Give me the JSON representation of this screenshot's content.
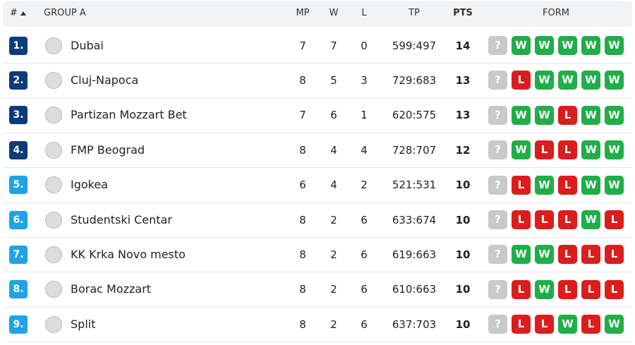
{
  "header": {
    "rank": "#",
    "group": "GROUP A",
    "mp": "MP",
    "w": "W",
    "l": "L",
    "tp": "TP",
    "pts": "PTS",
    "form": "FORM"
  },
  "rows": [
    {
      "rank": "1.",
      "badge_color": "#0c3c78",
      "team": "Dubai",
      "mp": 7,
      "w": 7,
      "l": 0,
      "tp": "599:497",
      "pts": 14,
      "form": [
        {
          "result": "?",
          "color": "#c9c9c9"
        },
        {
          "result": "W",
          "color": "#20ae48"
        },
        {
          "result": "W",
          "color": "#20ae48"
        },
        {
          "result": "W",
          "color": "#20ae48"
        },
        {
          "result": "W",
          "color": "#20ae48"
        },
        {
          "result": "W",
          "color": "#20ae48"
        }
      ]
    },
    {
      "rank": "2.",
      "badge_color": "#0c3c78",
      "team": "Cluj-Napoca",
      "mp": 8,
      "w": 5,
      "l": 3,
      "tp": "729:683",
      "pts": 13,
      "form": [
        {
          "result": "?",
          "color": "#c9c9c9"
        },
        {
          "result": "L",
          "color": "#dc1d1d"
        },
        {
          "result": "W",
          "color": "#20ae48"
        },
        {
          "result": "W",
          "color": "#20ae48"
        },
        {
          "result": "W",
          "color": "#20ae48"
        },
        {
          "result": "W",
          "color": "#20ae48"
        }
      ]
    },
    {
      "rank": "3.",
      "badge_color": "#0c3c78",
      "team": "Partizan Mozzart Bet",
      "mp": 7,
      "w": 6,
      "l": 1,
      "tp": "620:575",
      "pts": 13,
      "form": [
        {
          "result": "?",
          "color": "#c9c9c9"
        },
        {
          "result": "W",
          "color": "#20ae48"
        },
        {
          "result": "W",
          "color": "#20ae48"
        },
        {
          "result": "L",
          "color": "#dc1d1d"
        },
        {
          "result": "W",
          "color": "#20ae48"
        },
        {
          "result": "W",
          "color": "#20ae48"
        }
      ]
    },
    {
      "rank": "4.",
      "badge_color": "#0c3c78",
      "team": "FMP Beograd",
      "mp": 8,
      "w": 4,
      "l": 4,
      "tp": "728:707",
      "pts": 12,
      "form": [
        {
          "result": "?",
          "color": "#c9c9c9"
        },
        {
          "result": "W",
          "color": "#20ae48"
        },
        {
          "result": "L",
          "color": "#dc1d1d"
        },
        {
          "result": "L",
          "color": "#dc1d1d"
        },
        {
          "result": "W",
          "color": "#20ae48"
        },
        {
          "result": "W",
          "color": "#20ae48"
        }
      ]
    },
    {
      "rank": "5.",
      "badge_color": "#1fa3e6",
      "team": "Igokea",
      "mp": 6,
      "w": 4,
      "l": 2,
      "tp": "521:531",
      "pts": 10,
      "form": [
        {
          "result": "?",
          "color": "#c9c9c9"
        },
        {
          "result": "L",
          "color": "#dc1d1d"
        },
        {
          "result": "W",
          "color": "#20ae48"
        },
        {
          "result": "L",
          "color": "#dc1d1d"
        },
        {
          "result": "W",
          "color": "#20ae48"
        },
        {
          "result": "W",
          "color": "#20ae48"
        }
      ]
    },
    {
      "rank": "6.",
      "badge_color": "#1fa3e6",
      "team": "Studentski Centar",
      "mp": 8,
      "w": 2,
      "l": 6,
      "tp": "633:674",
      "pts": 10,
      "form": [
        {
          "result": "?",
          "color": "#c9c9c9"
        },
        {
          "result": "L",
          "color": "#dc1d1d"
        },
        {
          "result": "L",
          "color": "#dc1d1d"
        },
        {
          "result": "L",
          "color": "#dc1d1d"
        },
        {
          "result": "W",
          "color": "#20ae48"
        },
        {
          "result": "L",
          "color": "#dc1d1d"
        }
      ]
    },
    {
      "rank": "7.",
      "badge_color": "#1fa3e6",
      "team": "KK Krka Novo mesto",
      "mp": 8,
      "w": 2,
      "l": 6,
      "tp": "619:663",
      "pts": 10,
      "form": [
        {
          "result": "?",
          "color": "#c9c9c9"
        },
        {
          "result": "W",
          "color": "#20ae48"
        },
        {
          "result": "W",
          "color": "#20ae48"
        },
        {
          "result": "L",
          "color": "#dc1d1d"
        },
        {
          "result": "L",
          "color": "#dc1d1d"
        },
        {
          "result": "L",
          "color": "#dc1d1d"
        }
      ]
    },
    {
      "rank": "8.",
      "badge_color": "#1fa3e6",
      "team": "Borac Mozzart",
      "mp": 8,
      "w": 2,
      "l": 6,
      "tp": "610:663",
      "pts": 10,
      "form": [
        {
          "result": "?",
          "color": "#c9c9c9"
        },
        {
          "result": "L",
          "color": "#dc1d1d"
        },
        {
          "result": "W",
          "color": "#20ae48"
        },
        {
          "result": "L",
          "color": "#dc1d1d"
        },
        {
          "result": "L",
          "color": "#dc1d1d"
        },
        {
          "result": "L",
          "color": "#dc1d1d"
        }
      ]
    },
    {
      "rank": "9.",
      "badge_color": "#1fa3e6",
      "team": "Split",
      "mp": 8,
      "w": 2,
      "l": 6,
      "tp": "637:703",
      "pts": 10,
      "form": [
        {
          "result": "?",
          "color": "#c9c9c9"
        },
        {
          "result": "L",
          "color": "#dc1d1d"
        },
        {
          "result": "L",
          "color": "#dc1d1d"
        },
        {
          "result": "W",
          "color": "#20ae48"
        },
        {
          "result": "L",
          "color": "#dc1d1d"
        },
        {
          "result": "W",
          "color": "#20ae48"
        }
      ]
    }
  ]
}
